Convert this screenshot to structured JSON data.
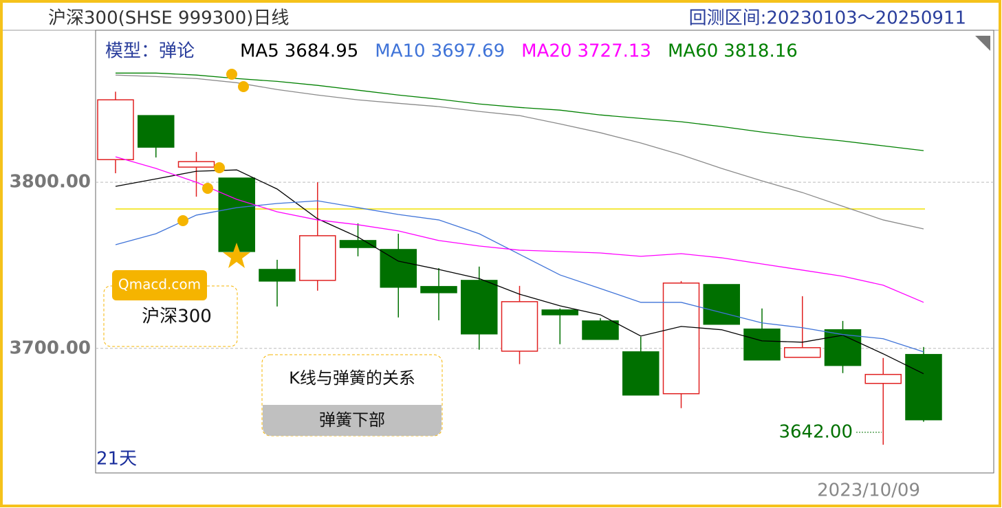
{
  "chart_data": {
    "type": "candlestick",
    "title": "沪深300(SHSE 999300)日线",
    "subtitle": "回测区间:20230103～20250911",
    "model_label": "模型：弹论",
    "date_label": "2023/10/09",
    "days_label": "21天",
    "watermark": "Qmacd.com",
    "box_label": "沪深300",
    "panel_title": "K线与弹簧的关系",
    "panel_subtitle": "弹簧下部",
    "low_marker": {
      "value": 3642,
      "label": "3642.00"
    },
    "ylim": [
      3625,
      3889
    ],
    "yticks": [
      {
        "value": 3700,
        "label": "3700.00"
      },
      {
        "value": 3800,
        "label": "3800.00"
      }
    ],
    "grid": true,
    "up_color": "#e02020",
    "down_color": "#007000",
    "reference_line": {
      "value": 3783.9,
      "color": "#f0e000"
    },
    "candles": {
      "open": [
        3813.6,
        3840.1,
        3809.1,
        3802.5,
        3747.5,
        3740.9,
        3764.9,
        3759.5,
        3737.2,
        3740.9,
        3698.3,
        3723.1,
        3716.5,
        3697.9,
        3672.7,
        3738.4,
        3711.6,
        3694.6,
        3711.2,
        3678.9,
        3696.3
      ],
      "high": [
        3854.5,
        3840.1,
        3818.2,
        3802.5,
        3753.3,
        3800,
        3775.2,
        3769,
        3748.3,
        3749.2,
        3737.6,
        3724,
        3718.2,
        3707,
        3740.5,
        3738.4,
        3724,
        3731.4,
        3716.5,
        3694.2,
        3700.8
      ],
      "low": [
        3805.4,
        3814.9,
        3791.3,
        3758.3,
        3725.2,
        3734.7,
        3755.4,
        3718.6,
        3716.9,
        3699.2,
        3690.5,
        3702.5,
        3705.4,
        3671.9,
        3664,
        3714.5,
        3693,
        3694.6,
        3685.1,
        3642,
        3655.8
      ],
      "close": [
        3849.6,
        3821.1,
        3812.4,
        3758.3,
        3740.5,
        3767.8,
        3760.7,
        3736.8,
        3733.5,
        3708.7,
        3728.1,
        3720.2,
        3705.4,
        3671.9,
        3739.3,
        3714.5,
        3693,
        3700.4,
        3689.7,
        3684.3,
        3657
      ]
    },
    "series": [
      {
        "name": "MA5",
        "current": 3684.95,
        "color": "#000000",
        "values": [
          3797.5,
          3802,
          3806.6,
          3807.4,
          3795.9,
          3778,
          3767,
          3752.5,
          3747.5,
          3742,
          3732.6,
          3725.6,
          3720.2,
          3707.4,
          3713.2,
          3711.2,
          3704.5,
          3703.7,
          3707.9,
          3696.7,
          3684.7
        ]
      },
      {
        "name": "MA10",
        "current": 3697.69,
        "color": "#3f73d8",
        "values": [
          3762.4,
          3769,
          3780.2,
          3784.7,
          3787.2,
          3788.8,
          3784.7,
          3780.6,
          3777.3,
          3769,
          3756.6,
          3744.2,
          3736,
          3727.7,
          3727.7,
          3721.5,
          3715.3,
          3712.4,
          3708.3,
          3705.8,
          3697.9
        ]
      },
      {
        "name": "MA20",
        "current": 3727.13,
        "color": "#ff00ff",
        "values": [
          3815.3,
          3808.3,
          3800,
          3789.7,
          3782.2,
          3777.3,
          3774.4,
          3770.7,
          3764.9,
          3761.6,
          3759.1,
          3758.3,
          3757.4,
          3755.4,
          3757,
          3754.5,
          3750.8,
          3747.1,
          3743.4,
          3738,
          3727.7
        ]
      },
      {
        "name": "MA60",
        "current": 3818.16,
        "color": "#008000",
        "values": [
          3865.7,
          3865.7,
          3864.5,
          3862.4,
          3860.7,
          3858.3,
          3855.4,
          3852.5,
          3850,
          3847.1,
          3845,
          3843.4,
          3840.5,
          3838.4,
          3836.4,
          3833.5,
          3830.2,
          3827.3,
          3824.8,
          3821.9,
          3819
        ]
      },
      {
        "color": "#8a8a8a",
        "values": [
          3864.5,
          3863.6,
          3862.4,
          3859.9,
          3855.8,
          3852.5,
          3849.6,
          3847.5,
          3845.5,
          3842.6,
          3840.1,
          3835.1,
          3829.8,
          3823.6,
          3816.5,
          3808.3,
          3800.8,
          3793.8,
          3785.5,
          3777.3,
          3771.9
        ]
      }
    ]
  }
}
